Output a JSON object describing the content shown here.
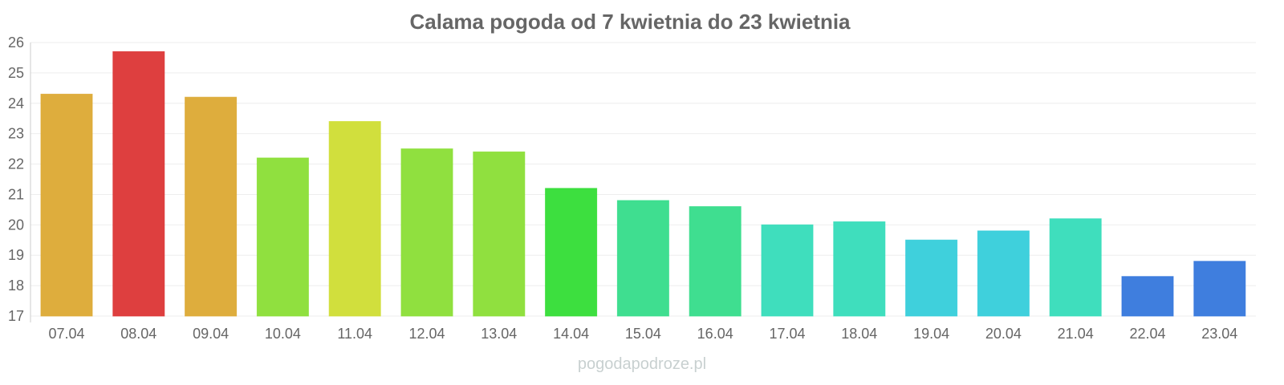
{
  "chart_data": {
    "type": "bar",
    "title": "Calama pogoda od 7 kwietnia do 23 kwietnia",
    "xlabel": "",
    "ylabel": "",
    "ylim": [
      17,
      26
    ],
    "yticks": [
      "17",
      "18",
      "19",
      "20",
      "21",
      "22",
      "23",
      "24",
      "25",
      "26"
    ],
    "grid": true,
    "categories": [
      "07.04",
      "08.04",
      "09.04",
      "10.04",
      "11.04",
      "12.04",
      "13.04",
      "14.04",
      "15.04",
      "16.04",
      "17.04",
      "18.04",
      "19.04",
      "20.04",
      "21.04",
      "22.04",
      "23.04"
    ],
    "values": [
      24.3,
      25.7,
      24.2,
      22.2,
      23.4,
      22.5,
      22.4,
      21.2,
      20.8,
      20.6,
      20.0,
      20.1,
      19.5,
      19.8,
      20.2,
      18.3,
      18.8
    ],
    "colors": [
      "#dca933",
      "#dc3535",
      "#dca933",
      "#8ade35",
      "#cfdd33",
      "#8ade35",
      "#8ade35",
      "#33dd35",
      "#35dc8a",
      "#35dc8a",
      "#35dcb9",
      "#35dcb9",
      "#35cdda",
      "#35cdda",
      "#35dcb9",
      "#3577dc",
      "#3577dc"
    ]
  },
  "watermark": "pogodapodroze.pl"
}
